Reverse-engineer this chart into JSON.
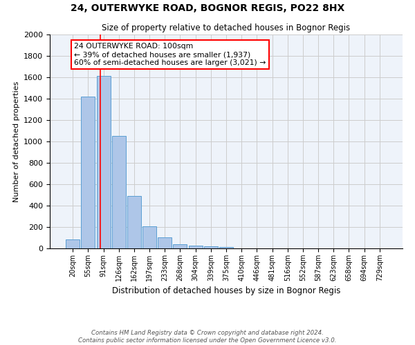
{
  "title1": "24, OUTERWYKE ROAD, BOGNOR REGIS, PO22 8HX",
  "title2": "Size of property relative to detached houses in Bognor Regis",
  "xlabel": "Distribution of detached houses by size in Bognor Regis",
  "ylabel": "Number of detached properties",
  "categories": [
    "20sqm",
    "55sqm",
    "91sqm",
    "126sqm",
    "162sqm",
    "197sqm",
    "233sqm",
    "268sqm",
    "304sqm",
    "339sqm",
    "375sqm",
    "410sqm",
    "446sqm",
    "481sqm",
    "516sqm",
    "552sqm",
    "587sqm",
    "623sqm",
    "658sqm",
    "694sqm",
    "729sqm"
  ],
  "values": [
    85,
    1420,
    1610,
    1050,
    490,
    205,
    105,
    40,
    28,
    20,
    15,
    0,
    0,
    0,
    0,
    0,
    0,
    0,
    0,
    0,
    0
  ],
  "bar_color": "#aec6e8",
  "bar_edge_color": "#5a9fd4",
  "bg_color": "#eef3fa",
  "grid_color": "#cccccc",
  "annotation_title": "24 OUTERWYKE ROAD: 100sqm",
  "annotation_line1": "← 39% of detached houses are smaller (1,937)",
  "annotation_line2": "60% of semi-detached houses are larger (3,021) →",
  "ylim": [
    0,
    2000
  ],
  "yticks": [
    0,
    200,
    400,
    600,
    800,
    1000,
    1200,
    1400,
    1600,
    1800,
    2000
  ],
  "footnote1": "Contains HM Land Registry data © Crown copyright and database right 2024.",
  "footnote2": "Contains public sector information licensed under the Open Government Licence v3.0."
}
